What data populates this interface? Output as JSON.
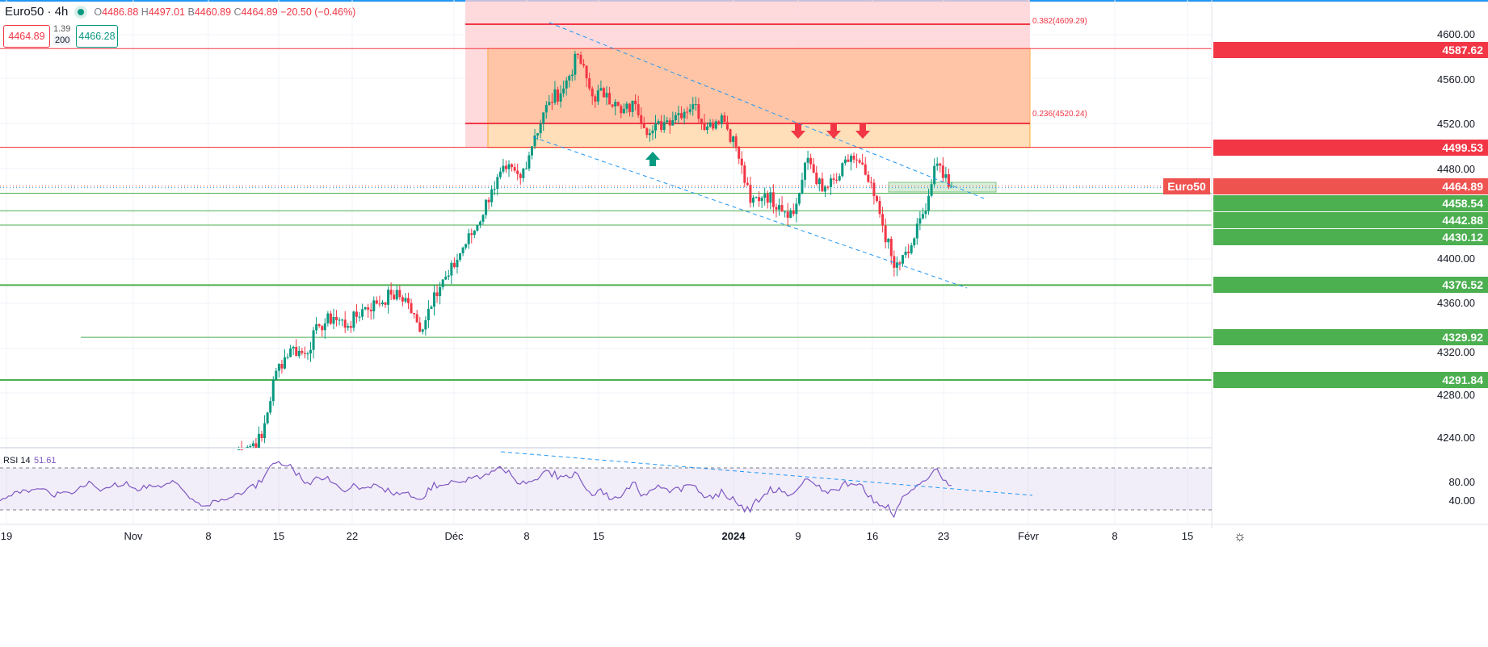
{
  "header": {
    "symbol": "Euro50 · 4h",
    "status": "market-open",
    "open_label": "O",
    "open": "4486.88",
    "high_label": "H",
    "high": "4497.01",
    "low_label": "B",
    "low": "4460.89",
    "close_label": "C",
    "close": "4464.89",
    "change": "−20.50 (−0.46%)",
    "sell_price": "4464.89",
    "spread": "1.39",
    "quantity": "200",
    "buy_price": "4466.28"
  },
  "price_axis": {
    "ticks": [
      "4600.00",
      "4560.00",
      "4520.00",
      "4480.00",
      "4400.00",
      "4360.00",
      "4320.00",
      "4280.00",
      "4240.00"
    ]
  },
  "levels": [
    {
      "value": "4587.62",
      "color": "#f23645"
    },
    {
      "value": "4499.53",
      "color": "#f23645"
    },
    {
      "value": "4464.89",
      "color": "#ef5350",
      "label": "Euro50"
    },
    {
      "value": "4458.54",
      "color": "#4caf50"
    },
    {
      "value": "4442.88",
      "color": "#4caf50"
    },
    {
      "value": "4430.12",
      "color": "#4caf50"
    },
    {
      "value": "4376.52",
      "color": "#4caf50"
    },
    {
      "value": "4329.92",
      "color": "#4caf50"
    },
    {
      "value": "4291.84",
      "color": "#4caf50"
    }
  ],
  "fib": [
    {
      "label": "0.382(4609.29)"
    },
    {
      "label": "0.236(4520.24)"
    }
  ],
  "rsi": {
    "label": "RSI 14",
    "value": "51.61",
    "ticks": [
      "80.00",
      "40.00"
    ],
    "color": "#7e57c2"
  },
  "time_axis": [
    "19",
    "Nov",
    "8",
    "15",
    "22",
    "Déc",
    "8",
    "15",
    "2024",
    "9",
    "16",
    "23",
    "Févr",
    "8",
    "15"
  ],
  "colors": {
    "up": "#089981",
    "down": "#f23645",
    "fib_zone": "#ffcdd2",
    "supply_zone": "#ffb74d",
    "trendline": "#2196f3"
  },
  "chart_data": {
    "type": "candlestick",
    "symbol": "Euro50",
    "interval": "4h",
    "ylim": [
      4220,
      4630
    ],
    "daily_close": [
      [
        "2023-11-10",
        4232
      ],
      [
        "2023-11-13",
        4240
      ],
      [
        "2023-11-14",
        4300
      ],
      [
        "2023-11-15",
        4320
      ],
      [
        "2023-11-16",
        4315
      ],
      [
        "2023-11-17",
        4340
      ],
      [
        "2023-11-20",
        4348
      ],
      [
        "2023-11-21",
        4340
      ],
      [
        "2023-11-22",
        4355
      ],
      [
        "2023-11-23",
        4360
      ],
      [
        "2023-11-24",
        4368
      ],
      [
        "2023-11-27",
        4365
      ],
      [
        "2023-11-28",
        4335
      ],
      [
        "2023-11-29",
        4370
      ],
      [
        "2023-11-30",
        4385
      ],
      [
        "2023-12-01",
        4410
      ],
      [
        "2023-12-04",
        4430
      ],
      [
        "2023-12-05",
        4462
      ],
      [
        "2023-12-06",
        4480
      ],
      [
        "2023-12-07",
        4472
      ],
      [
        "2023-12-08",
        4510
      ],
      [
        "2023-12-11",
        4540
      ],
      [
        "2023-12-12",
        4552
      ],
      [
        "2023-12-13",
        4582
      ],
      [
        "2023-12-14",
        4545
      ],
      [
        "2023-12-15",
        4548
      ],
      [
        "2023-12-18",
        4530
      ],
      [
        "2023-12-19",
        4538
      ],
      [
        "2023-12-20",
        4512
      ],
      [
        "2023-12-21",
        4522
      ],
      [
        "2023-12-22",
        4530
      ],
      [
        "2023-12-27",
        4538
      ],
      [
        "2023-12-28",
        4518
      ],
      [
        "2023-12-29",
        4528
      ],
      [
        "2024-01-02",
        4500
      ],
      [
        "2024-01-03",
        4450
      ],
      [
        "2024-01-04",
        4458
      ],
      [
        "2024-01-05",
        4448
      ],
      [
        "2024-01-08",
        4440
      ],
      [
        "2024-01-09",
        4490
      ],
      [
        "2024-01-10",
        4460
      ],
      [
        "2024-01-11",
        4470
      ],
      [
        "2024-01-12",
        4492
      ],
      [
        "2024-01-15",
        4475
      ],
      [
        "2024-01-16",
        4440
      ],
      [
        "2024-01-17",
        4392
      ],
      [
        "2024-01-18",
        4405
      ],
      [
        "2024-01-19",
        4440
      ],
      [
        "2024-01-22",
        4485
      ],
      [
        "2024-01-23",
        4464.89
      ]
    ],
    "rsi_levels": [
      70,
      30
    ]
  }
}
